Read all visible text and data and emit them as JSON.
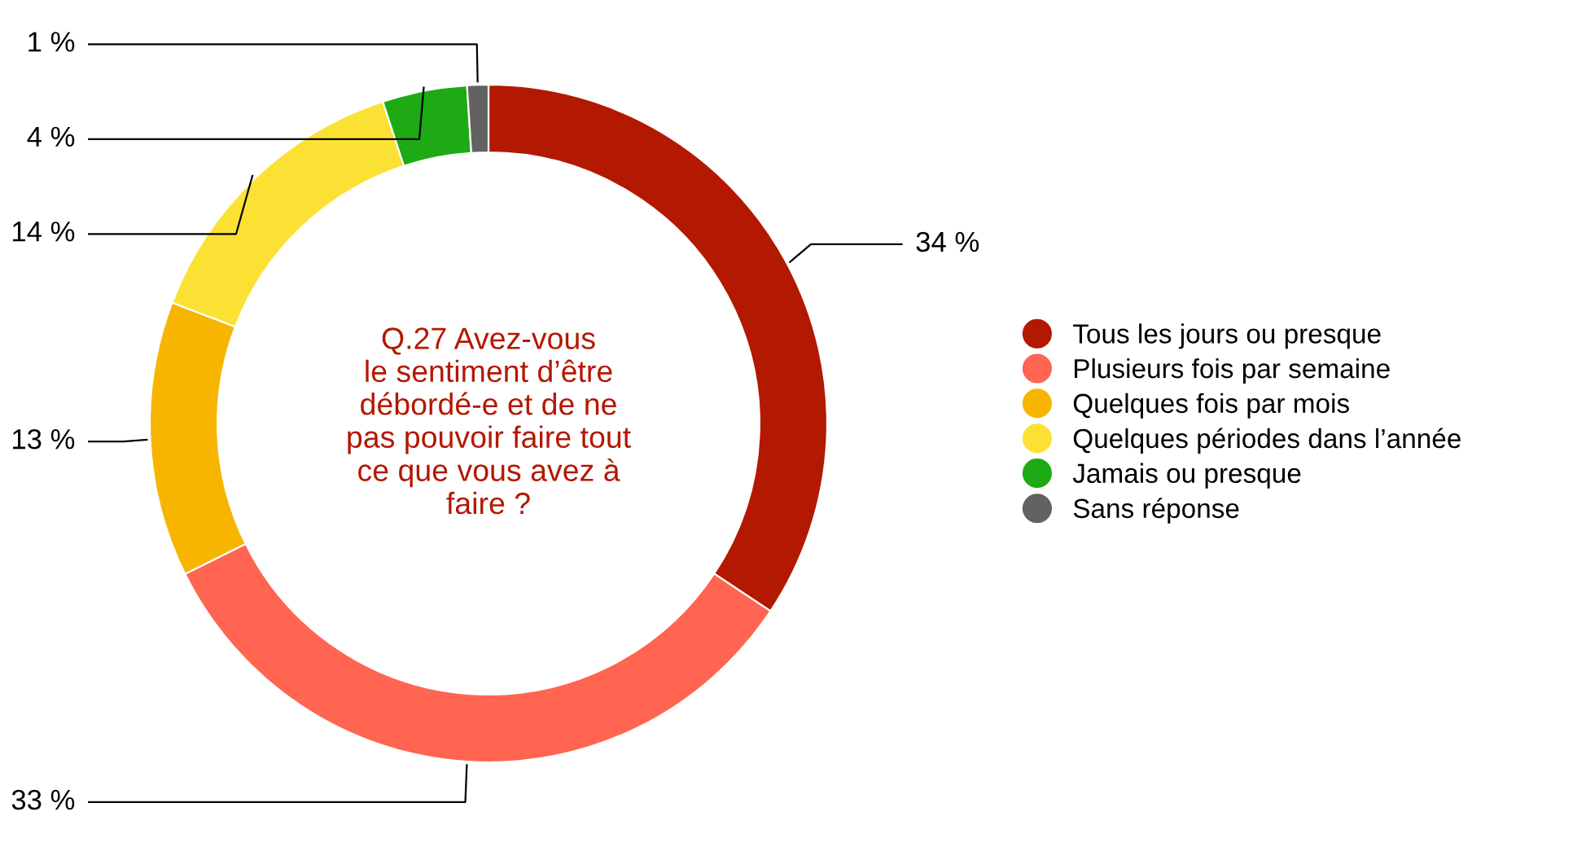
{
  "chart_data": {
    "type": "donut",
    "title": "Q.27 Avez-vous\nle sentiment d’être\ndébordé-e et de ne\npas pouvoir faire tout\nce que vous avez à\nfaire ?",
    "categories": [
      "Tous les jours ou presque",
      "Plusieurs fois par semaine",
      "Quelques fois par mois",
      "Quelques périodes dans l’année",
      "Jamais ou presque",
      "Sans réponse"
    ],
    "values": [
      34,
      33,
      13,
      14,
      4,
      1
    ],
    "colors": [
      "#b31800",
      "#ff6550",
      "#f7b500",
      "#fce135",
      "#1daa14",
      "#626262"
    ],
    "value_labels": [
      "34 %",
      "33 %",
      "13 %",
      "14 %",
      "4 %",
      "1 %"
    ],
    "legend": "right"
  }
}
